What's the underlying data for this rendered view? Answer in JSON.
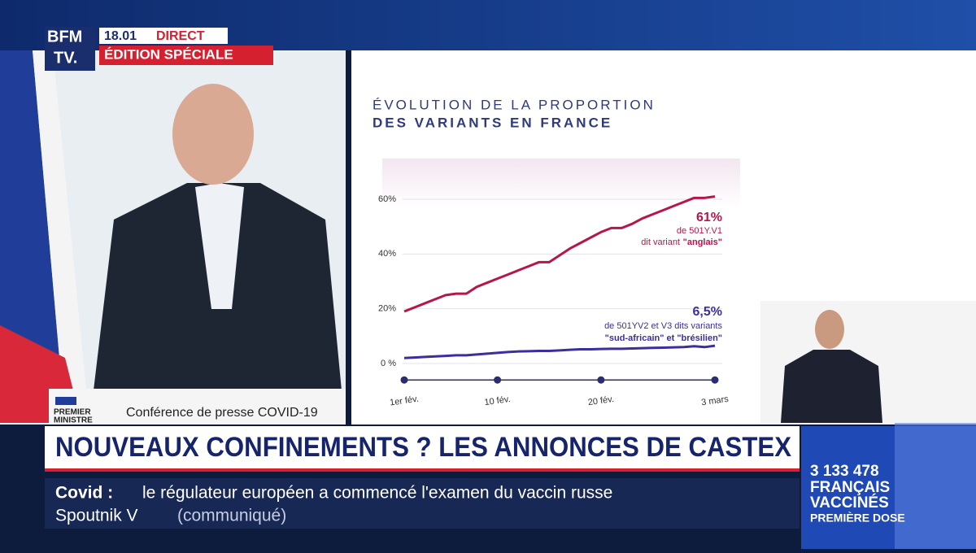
{
  "broadcast": {
    "logo": [
      "BFM",
      "TV."
    ],
    "time": "18.01",
    "live": "DIRECT",
    "edition": "ÉDITION SPÉCIALE",
    "speaker_title": [
      "PREMIER",
      "MINISTRE"
    ],
    "event": "Conférence de presse COVID-19",
    "headline": "NOUVEAUX CONFINEMENTS ? LES ANNONCES DE CASTEX",
    "ticker": {
      "topic": "Covid :",
      "line1": "le régulateur européen a commencé l'examen du vaccin russe",
      "line2": "Spoutnik V",
      "source": "(communiqué)"
    },
    "counter": {
      "number": "3 133 478",
      "line1": "FRANÇAIS",
      "line2": "VACCINÉS",
      "line3": "PREMIÈRE DOSE"
    }
  },
  "chart_data": {
    "type": "line",
    "title": "ÉVOLUTION DE LA PROPORTION",
    "subtitle": "DES VARIANTS EN FRANCE",
    "categories": [
      "1er fév.",
      null,
      null,
      null,
      null,
      null,
      null,
      null,
      null,
      "10 fév.",
      null,
      null,
      null,
      null,
      null,
      null,
      null,
      null,
      null,
      "20 fév.",
      null,
      null,
      null,
      null,
      null,
      null,
      null,
      null,
      null,
      null,
      "3 mars"
    ],
    "series": [
      {
        "color": "#b5174a",
        "values": [
          19,
          20.5,
          22,
          23.5,
          25,
          25.5,
          25.5,
          28,
          29.5,
          31,
          32.5,
          34,
          35.5,
          37,
          37,
          39.5,
          42,
          44,
          46,
          48,
          49.5,
          49.5,
          51,
          53,
          54.5,
          56,
          57.5,
          59,
          60.5,
          60.5,
          61
        ]
      },
      {
        "color": "#3b2f9e",
        "values": [
          2,
          2.2,
          2.4,
          2.6,
          2.8,
          3,
          3,
          3.3,
          3.6,
          3.9,
          4.2,
          4.4,
          4.5,
          4.6,
          4.6,
          4.8,
          5,
          5.2,
          5.2,
          5.3,
          5.4,
          5.4,
          5.5,
          5.6,
          5.7,
          5.8,
          5.9,
          6,
          6.3,
          6,
          6.5
        ]
      }
    ],
    "annotations": [
      {
        "series": 0,
        "lines": [
          "61%",
          "de 501Y.V1",
          "dit variant",
          "\"anglais\""
        ]
      },
      {
        "series": 1,
        "lines": [
          "6,5%",
          "de 501YV2 et V3 dits variants",
          "\"sud-africain\" et \"brésilien\""
        ]
      }
    ],
    "ylim": [
      -6,
      65
    ],
    "yticks": [
      {
        "value": 0,
        "label": "0 %"
      },
      {
        "value": 20,
        "label": "20%"
      },
      {
        "value": 40,
        "label": "40%"
      },
      {
        "value": 60,
        "label": "60%"
      }
    ],
    "grid": true
  }
}
